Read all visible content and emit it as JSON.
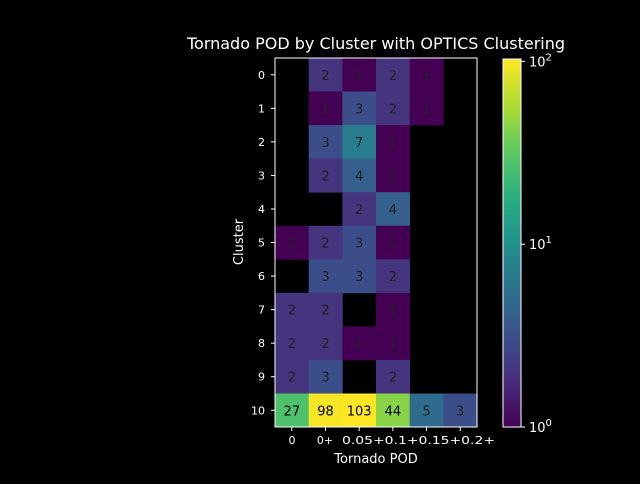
{
  "chart_data": {
    "type": "heatmap",
    "title": "Tornado POD by Cluster with OPTICS Clustering",
    "xlabel": "Tornado POD",
    "ylabel": "Cluster",
    "x_categories": [
      "0",
      "0+",
      "0.05+",
      "0.1+",
      "0.15+",
      "0.2+"
    ],
    "x_tick_labels": [
      "0",
      "0+",
      "0.05+0.1+0.15+0.2+",
      "",
      "",
      ""
    ],
    "y_categories": [
      "0",
      "1",
      "2",
      "3",
      "4",
      "5",
      "6",
      "7",
      "8",
      "9",
      "10"
    ],
    "values": [
      [
        null,
        2,
        1,
        2,
        1,
        null
      ],
      [
        null,
        1,
        3,
        2,
        1,
        null
      ],
      [
        null,
        3,
        7,
        1,
        null,
        null
      ],
      [
        null,
        2,
        4,
        1,
        null,
        null
      ],
      [
        null,
        null,
        2,
        4,
        null,
        null
      ],
      [
        1,
        2,
        3,
        1,
        null,
        null
      ],
      [
        null,
        3,
        3,
        2,
        null,
        null
      ],
      [
        2,
        2,
        null,
        1,
        null,
        null
      ],
      [
        2,
        2,
        1,
        1,
        null,
        null
      ],
      [
        2,
        3,
        null,
        2,
        null,
        null
      ],
      [
        27,
        98,
        103,
        44,
        5,
        3
      ]
    ],
    "colorscale": "viridis",
    "color_scale_type": "log",
    "color_range": [
      1,
      103
    ],
    "colorbar_ticks": [
      "10^0",
      "10^1",
      "10^2"
    ],
    "missing_color": "#000000",
    "legend_position": "right"
  }
}
